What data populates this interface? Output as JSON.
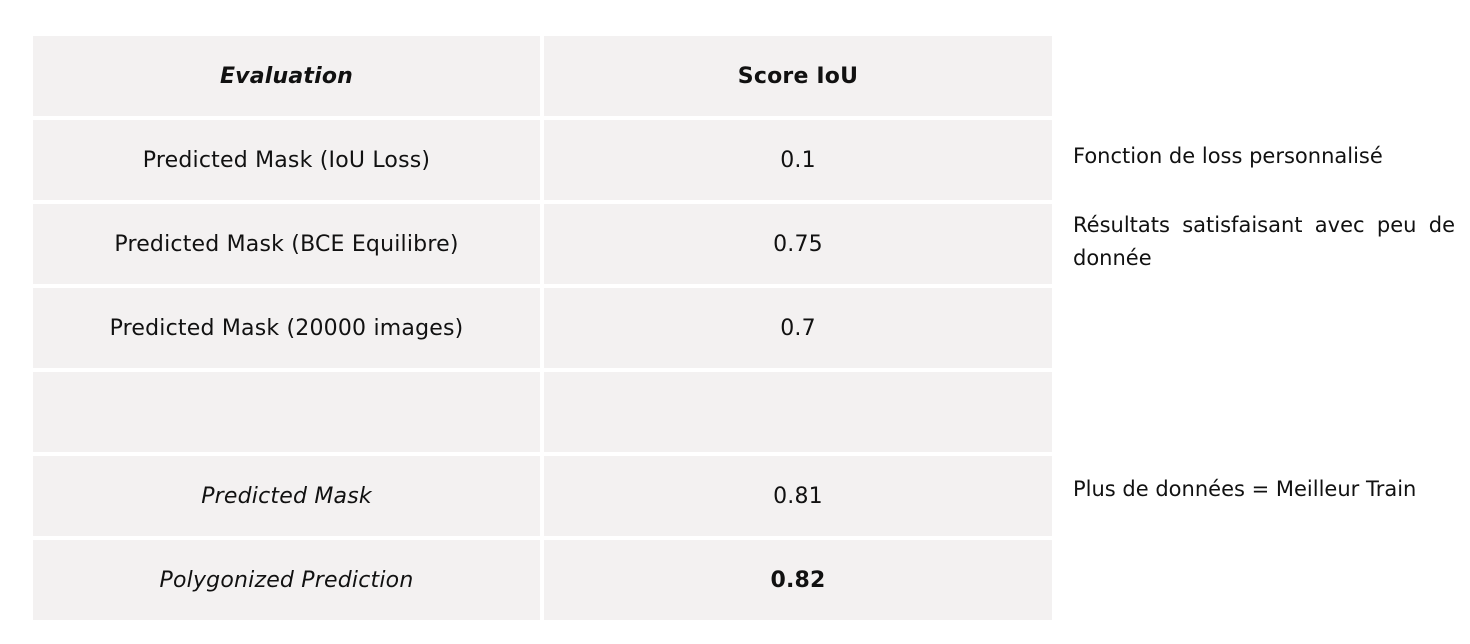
{
  "table": {
    "header": {
      "evaluation": "Evaluation",
      "score": "Score IoU"
    },
    "rows": [
      {
        "evaluation": "Predicted Mask (IoU Loss)",
        "score": "0.1"
      },
      {
        "evaluation": "Predicted Mask (BCE Equilibre)",
        "score": "0.75"
      },
      {
        "evaluation": "Predicted Mask (20000 images)",
        "score": "0.7"
      },
      {
        "evaluation": "",
        "score": ""
      },
      {
        "evaluation": "Predicted Mask",
        "score": "0.81"
      },
      {
        "evaluation": "Polygonized Prediction",
        "score": "0.82"
      }
    ]
  },
  "notes": {
    "custom_loss": "Fonction de loss personnalisé",
    "few_data": "Résultats satisfaisant avec peu de donnée",
    "more_data": "Plus de données = Meilleur Train"
  }
}
